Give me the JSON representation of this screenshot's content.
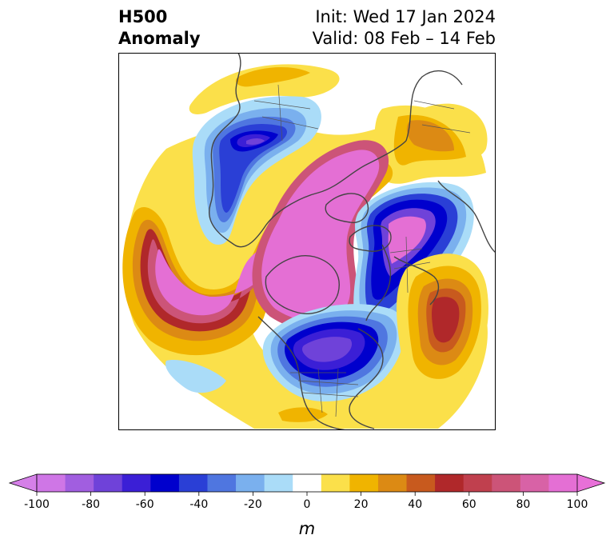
{
  "title": {
    "left_line1": "H500",
    "left_line2": "Anomaly",
    "right_line1": "Init: Wed 17 Jan 2024",
    "right_line2": "Valid: 08 Feb – 14 Feb"
  },
  "map": {
    "projection": "north polar stereographic",
    "features": [
      {
        "name": "ridge-north-pacific",
        "sign": "positive",
        "peak_m": 100
      },
      {
        "name": "ridge-arctic-canada-greenland",
        "sign": "positive",
        "peak_m": 100
      },
      {
        "name": "trough-east-siberia",
        "sign": "negative",
        "peak_m": -90
      },
      {
        "name": "trough-europe",
        "sign": "negative",
        "peak_m": -90
      },
      {
        "name": "trough-eastern-north-america",
        "sign": "negative",
        "peak_m": -90
      },
      {
        "name": "ridge-north-atlantic",
        "sign": "positive",
        "peak_m": 60
      },
      {
        "name": "ridge-central-asia",
        "sign": "positive",
        "peak_m": 30
      }
    ]
  },
  "colorbar": {
    "unit_label": "m",
    "ticks": [
      "-100",
      "-80",
      "-60",
      "-40",
      "-20",
      "0",
      "20",
      "40",
      "60",
      "80",
      "100"
    ],
    "levels": [
      -100,
      -90,
      -80,
      -70,
      -60,
      -50,
      -40,
      -30,
      -20,
      -10,
      10,
      20,
      30,
      40,
      50,
      60,
      70,
      80,
      90,
      100
    ],
    "colors": [
      "#cf76e6",
      "#a15ee0",
      "#6f42d9",
      "#3b1fd6",
      "#0000cd",
      "#2a3fd6",
      "#4f76e0",
      "#7ab0ee",
      "#aadcf8",
      "#ffffff",
      "#fbe04a",
      "#f0b400",
      "#dc8a14",
      "#c85a1e",
      "#b0282a",
      "#c0404e",
      "#cc5478",
      "#d862a6",
      "#e46fd4"
    ],
    "extend_low_color": "#d580e8",
    "extend_high_color": "#e870d8"
  }
}
